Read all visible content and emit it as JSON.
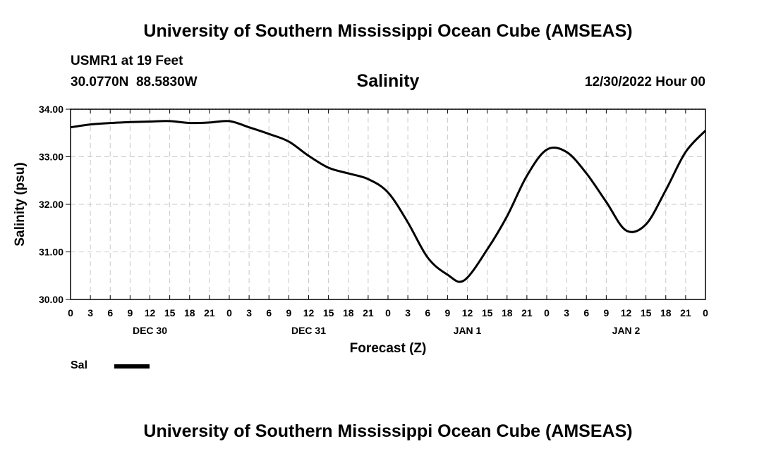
{
  "header": {
    "title": "University of Southern Mississippi Ocean Cube (AMSEAS)",
    "station": "USMR1 at 19 Feet",
    "coords": "30.0770N  88.5830W",
    "chart_title": "Salinity",
    "datetime": "12/30/2022 Hour 00"
  },
  "footer": {
    "title": "University of Southern Mississippi Ocean Cube (AMSEAS)"
  },
  "legend": {
    "label": "Sal",
    "color": "#000000"
  },
  "chart_data": {
    "type": "line",
    "title": "Salinity",
    "xlabel": "Forecast (Z)",
    "ylabel": "Salinity (psu)",
    "ylim": [
      30.0,
      34.0
    ],
    "yticks": [
      "30.00",
      "31.00",
      "32.00",
      "33.00",
      "34.00"
    ],
    "xlim_hours": [
      0,
      96
    ],
    "xtick_labels": [
      "0",
      "3",
      "6",
      "9",
      "12",
      "15",
      "18",
      "21",
      "0",
      "3",
      "6",
      "9",
      "12",
      "15",
      "18",
      "21",
      "0",
      "3",
      "6",
      "9",
      "12",
      "15",
      "18",
      "21",
      "0",
      "3",
      "6",
      "9",
      "12",
      "15",
      "18",
      "21",
      "0"
    ],
    "day_labels": [
      {
        "hour": 12,
        "label": "DEC 30"
      },
      {
        "hour": 36,
        "label": "DEC 31"
      },
      {
        "hour": 60,
        "label": "JAN 1"
      },
      {
        "hour": 84,
        "label": "JAN 2"
      }
    ],
    "grid": true,
    "series": [
      {
        "name": "Sal",
        "color": "#000000",
        "x": [
          0,
          3,
          6,
          9,
          12,
          15,
          18,
          21,
          24,
          27,
          30,
          33,
          36,
          39,
          42,
          45,
          48,
          51,
          54,
          57,
          59.5,
          63,
          66,
          69,
          72,
          75,
          78,
          81,
          84,
          87,
          90,
          93,
          96
        ],
        "values": [
          33.62,
          33.68,
          33.71,
          33.73,
          33.74,
          33.75,
          33.71,
          33.72,
          33.75,
          33.62,
          33.48,
          33.32,
          33.02,
          32.77,
          32.65,
          32.53,
          32.25,
          31.62,
          30.88,
          30.52,
          30.4,
          31.05,
          31.75,
          32.6,
          33.15,
          33.1,
          32.65,
          32.05,
          31.45,
          31.58,
          32.3,
          33.1,
          33.55
        ]
      }
    ]
  }
}
